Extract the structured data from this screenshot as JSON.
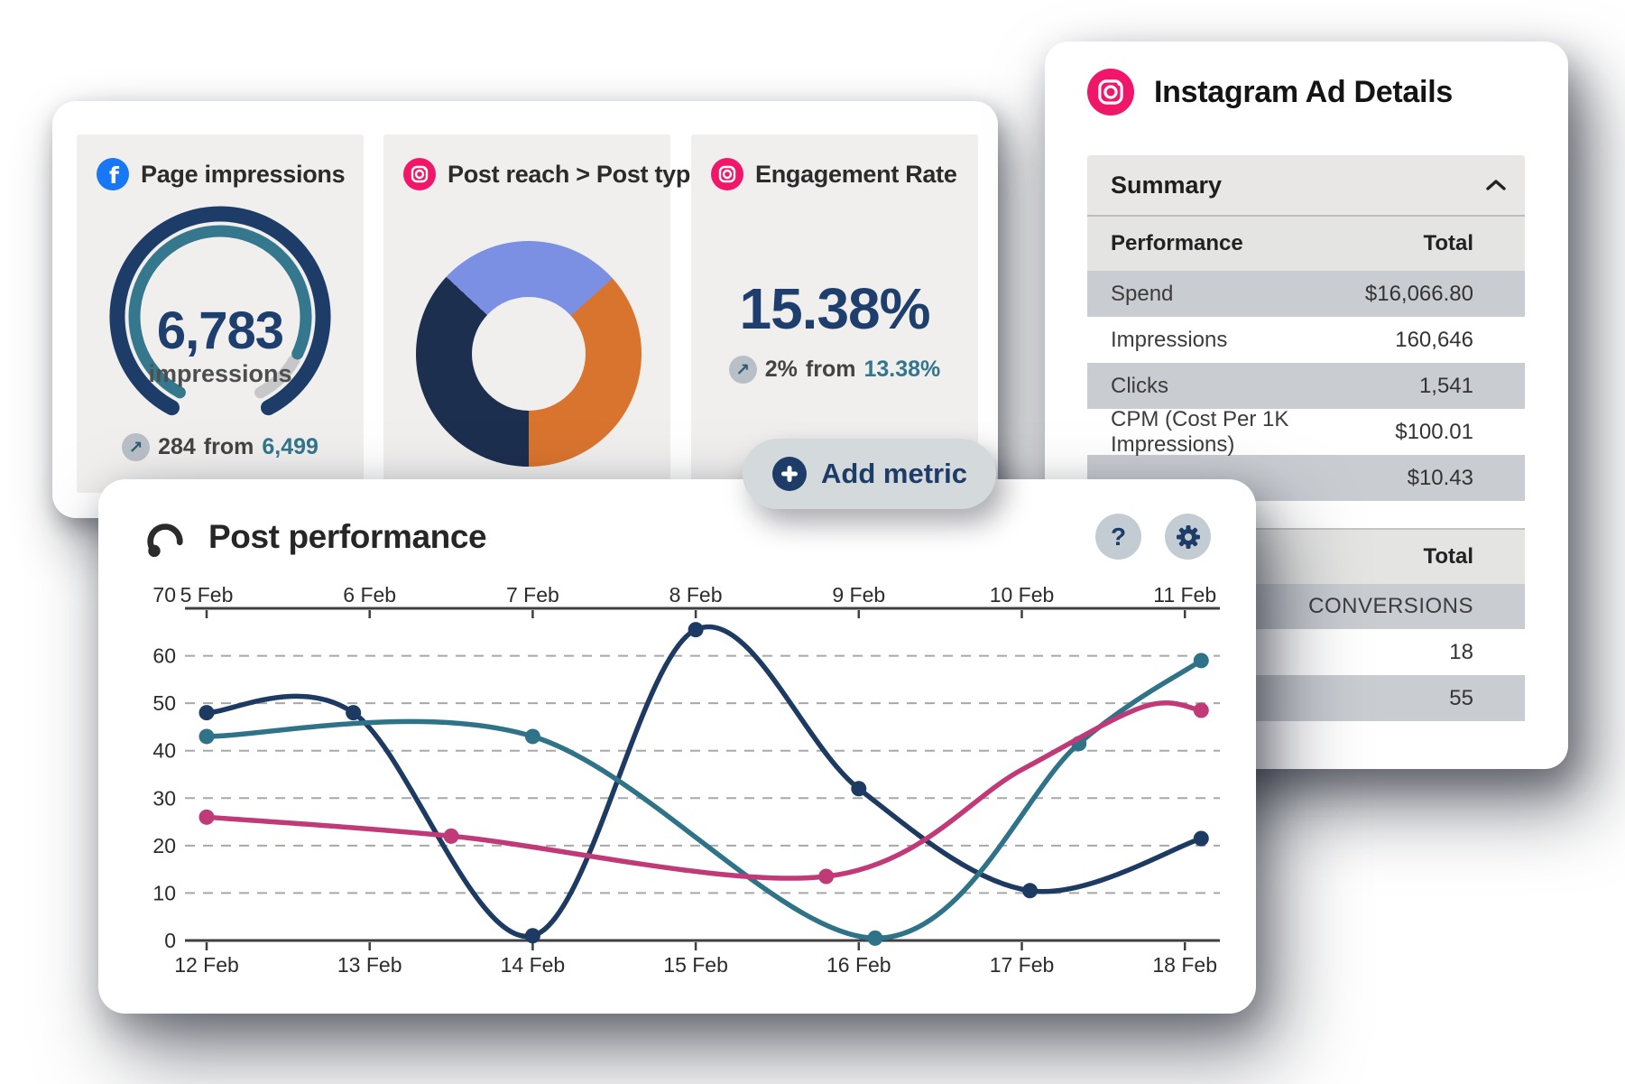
{
  "colors": {
    "navy": "#1d3c68",
    "teal": "#2f7389",
    "magenta": "#c03a78",
    "instagram_pink": "#f0176b",
    "facebook_blue": "#1877f2",
    "tile_background": "#f0efee",
    "table_row_shaded": "#c9ccd1"
  },
  "metrics_card": {
    "tiles": [
      {
        "title": "Page impressions",
        "platform": "facebook",
        "indicator_dot_color": "#2f7389",
        "gauge": {
          "value": "6,783",
          "label": "impressions",
          "outer_color": "#1d3c68",
          "progress_color": "#35778c",
          "rest_color": "#c7c7c9",
          "progress_pct": 88
        },
        "change": {
          "value": "284",
          "connector": "from",
          "reference": "6,499"
        }
      },
      {
        "title": "Post reach > Post type",
        "platform": "instagram",
        "donut": {
          "start_deg": -47,
          "segments": [
            {
              "name": "segment-1",
              "color": "#7b90e3",
              "deg": 95
            },
            {
              "name": "segment-2",
              "color": "#d9742f",
              "deg": 132
            },
            {
              "name": "segment-3",
              "color": "#1d2f4f",
              "deg": 133
            }
          ]
        }
      },
      {
        "title": "Engagement Rate",
        "platform": "instagram",
        "value": "15.38%",
        "change": {
          "value": "2%",
          "connector": "from",
          "reference": "13.38%"
        }
      }
    ],
    "add_metric": {
      "label": "Add metric"
    }
  },
  "instagram_card": {
    "title": "Instagram Ad Details",
    "summary": {
      "label": "Summary"
    },
    "performance_table": {
      "col1": "Performance",
      "col2": "Total",
      "rows": [
        {
          "label": "Spend",
          "value": "$16,066.80",
          "shaded": true
        },
        {
          "label": "Impressions",
          "value": "160,646",
          "shaded": false
        },
        {
          "label": "Clicks",
          "value": "1,541",
          "shaded": true
        },
        {
          "label": "CPM (Cost Per 1K Impressions)",
          "value": "$100.01",
          "shaded": false
        },
        {
          "label": "",
          "value": "$10.43",
          "shaded": true
        }
      ]
    },
    "conversions_table": {
      "header": "Total",
      "subheader": "CONVERSIONS",
      "rows": [
        {
          "value": "18",
          "shaded": false
        },
        {
          "value": "55",
          "shaded": true
        }
      ]
    }
  },
  "post_performance": {
    "title": "Post performance",
    "chart_data": {
      "type": "line",
      "x_axis_top": [
        "5 Feb",
        "6 Feb",
        "7 Feb",
        "8 Feb",
        "9 Feb",
        "10 Feb",
        "11 Feb"
      ],
      "x_axis_bottom": [
        "12 Feb",
        "13 Feb",
        "14 Feb",
        "15 Feb",
        "16 Feb",
        "17 Feb",
        "18 Feb"
      ],
      "ylim": [
        0,
        70
      ],
      "yticks": [
        0,
        10,
        20,
        30,
        40,
        50,
        60,
        70
      ],
      "grid": "dashed-horizontal",
      "series": [
        {
          "name": "dark-navy",
          "color": "#1d3a63",
          "points": [
            {
              "x": 0,
              "y": 48
            },
            {
              "x": 0.9,
              "y": 48
            },
            {
              "x": 2,
              "y": 1
            },
            {
              "x": 3,
              "y": 65.5
            },
            {
              "x": 4,
              "y": 32
            },
            {
              "x": 5.05,
              "y": 10.5
            },
            {
              "x": 6.1,
              "y": 21.5
            }
          ]
        },
        {
          "name": "teal",
          "color": "#2f7389",
          "points": [
            {
              "x": 0,
              "y": 43
            },
            {
              "x": 2,
              "y": 43
            },
            {
              "x": 4.1,
              "y": 0.5
            },
            {
              "x": 5.35,
              "y": 41.5
            },
            {
              "x": 6.1,
              "y": 59
            }
          ]
        },
        {
          "name": "magenta",
          "color": "#c03a78",
          "points": [
            {
              "x": 0,
              "y": 26
            },
            {
              "x": 1.5,
              "y": 22
            },
            {
              "x": 3.8,
              "y": 13.5
            },
            {
              "x": 5,
              "y": 36,
              "dot": false
            },
            {
              "x": 5.75,
              "y": 49.3,
              "dot": false
            },
            {
              "x": 6.1,
              "y": 48.5
            }
          ]
        }
      ]
    }
  }
}
